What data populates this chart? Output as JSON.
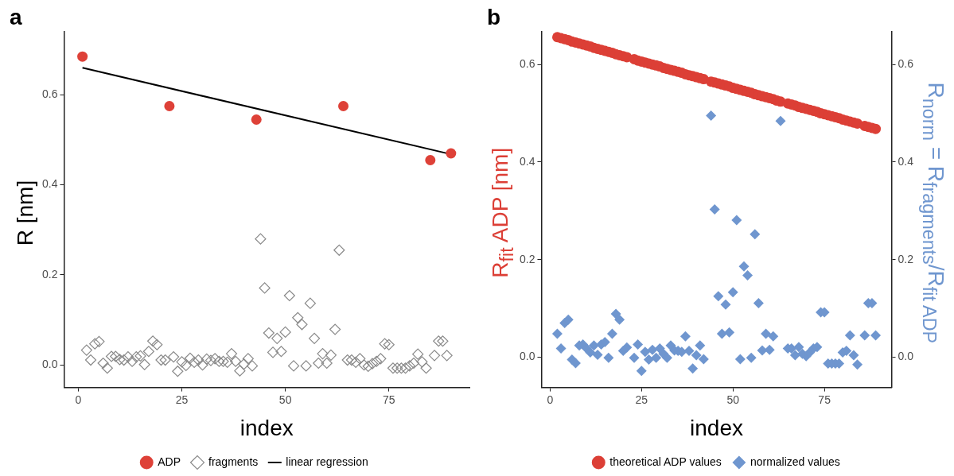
{
  "chart_data": [
    {
      "type": "scatter",
      "title": "a",
      "xlabel": "index",
      "ylabel": "R [nm]",
      "xlim": [
        -3.45,
        94.45
      ],
      "ylim": [
        -0.05,
        0.74
      ],
      "xticks": [
        0,
        25,
        50,
        75
      ],
      "yticks": [
        {
          "value": 0,
          "label": "0.0"
        },
        {
          "value": 0.2,
          "label": "0.2"
        },
        {
          "value": 0.4,
          "label": "0.4"
        },
        {
          "value": 0.6,
          "label": "0.6"
        }
      ],
      "grid": false,
      "legend": "bottom",
      "series": [
        {
          "name": "ADP",
          "color": "#de4138",
          "marker": "circle",
          "x": [
            1,
            22,
            43,
            64,
            85,
            90
          ],
          "values": [
            0.685,
            0.575,
            0.545,
            0.575,
            0.455,
            0.47
          ]
        },
        {
          "name": "fragments",
          "color": "#8a8a8a",
          "marker": "diamond",
          "x": [
            2,
            3,
            4,
            5,
            6,
            7,
            8,
            9,
            10,
            11,
            12,
            13,
            14,
            15,
            16,
            17,
            18,
            19,
            20,
            21,
            23,
            24,
            25,
            26,
            27,
            28,
            29,
            30,
            31,
            32,
            33,
            34,
            35,
            36,
            37,
            38,
            39,
            40,
            41,
            42,
            44,
            45,
            46,
            47,
            48,
            49,
            50,
            51,
            52,
            53,
            54,
            55,
            56,
            57,
            58,
            59,
            60,
            61,
            62,
            63,
            65,
            66,
            67,
            68,
            69,
            70,
            71,
            72,
            73,
            74,
            75,
            76,
            77,
            78,
            79,
            80,
            81,
            82,
            83,
            84,
            86,
            87,
            88,
            89
          ],
          "values": [
            0.033,
            0.011,
            0.047,
            0.052,
            0.004,
            -0.007,
            0.019,
            0.019,
            0.012,
            0.011,
            0.018,
            0.008,
            0.018,
            0.02,
            0.001,
            0.03,
            0.053,
            0.045,
            0.011,
            0.011,
            0.018,
            -0.014,
            0.007,
            -0.001,
            0.015,
            0.006,
            0.011,
            0.0,
            0.013,
            0.01,
            0.014,
            0.008,
            0.008,
            0.006,
            0.025,
            0.008,
            -0.013,
            0.002,
            0.014,
            -0.002,
            0.28,
            0.171,
            0.071,
            0.028,
            0.059,
            0.03,
            0.073,
            0.154,
            -0.002,
            0.105,
            0.09,
            -0.002,
            0.137,
            0.059,
            0.004,
            0.025,
            0.004,
            0.022,
            0.079,
            0.255,
            0.011,
            0.011,
            0.006,
            0.014,
            0.0,
            -0.003,
            0.003,
            0.008,
            0.014,
            0.047,
            0.045,
            -0.007,
            -0.007,
            -0.007,
            -0.007,
            -0.002,
            0.004,
            0.024,
            0.007,
            -0.007,
            0.021,
            0.053,
            0.053,
            0.021
          ]
        },
        {
          "name": "linear regression",
          "type": "line",
          "color": "#000000",
          "marker": "none",
          "x": [
            1,
            90
          ],
          "values": [
            0.66,
            0.468
          ]
        }
      ]
    },
    {
      "type": "scatter",
      "title": "b",
      "xlabel": "index",
      "ylabel": "R$_{fit}$ ADP [nm]",
      "y2label": "R$_{norm}$ = R$_{fragments}$/R$_{fit ADP}$",
      "xlim": [
        -2.35,
        93.35
      ],
      "ylim": [
        -0.062,
        0.667
      ],
      "y2lim": [
        -0.062,
        0.667
      ],
      "xticks": [
        0,
        25,
        50,
        75
      ],
      "yticks": [
        {
          "value": 0,
          "label": "0.0"
        },
        {
          "value": 0.2,
          "label": "0.2"
        },
        {
          "value": 0.4,
          "label": "0.4"
        },
        {
          "value": 0.6,
          "label": "0.6"
        }
      ],
      "y2ticks": [
        {
          "value": 0,
          "label": "0.0"
        },
        {
          "value": 0.2,
          "label": "0.2"
        },
        {
          "value": 0.4,
          "label": "0.4"
        },
        {
          "value": 0.6,
          "label": "0.6"
        }
      ],
      "grid": false,
      "legend": "bottom",
      "series": [
        {
          "name": "theoretical ADP values",
          "color": "#dc3f36",
          "marker": "circle",
          "x": [
            2,
            3,
            4,
            5,
            6,
            7,
            8,
            9,
            10,
            11,
            12,
            13,
            14,
            15,
            16,
            17,
            18,
            19,
            20,
            21,
            23,
            24,
            25,
            26,
            27,
            28,
            29,
            30,
            31,
            32,
            33,
            34,
            35,
            36,
            37,
            38,
            39,
            40,
            41,
            42,
            44,
            45,
            46,
            47,
            48,
            49,
            50,
            51,
            52,
            53,
            54,
            55,
            56,
            57,
            58,
            59,
            60,
            61,
            62,
            63,
            65,
            66,
            67,
            68,
            69,
            70,
            71,
            72,
            73,
            74,
            75,
            76,
            77,
            78,
            79,
            80,
            81,
            82,
            83,
            84,
            86,
            87,
            88,
            89
          ],
          "values": [
            0.656,
            0.654,
            0.652,
            0.65,
            0.647,
            0.645,
            0.643,
            0.641,
            0.639,
            0.637,
            0.634,
            0.632,
            0.63,
            0.628,
            0.626,
            0.624,
            0.621,
            0.619,
            0.617,
            0.615,
            0.611,
            0.608,
            0.606,
            0.604,
            0.602,
            0.6,
            0.598,
            0.596,
            0.593,
            0.591,
            0.589,
            0.587,
            0.585,
            0.583,
            0.58,
            0.578,
            0.576,
            0.574,
            0.572,
            0.57,
            0.565,
            0.563,
            0.561,
            0.559,
            0.557,
            0.555,
            0.552,
            0.55,
            0.548,
            0.546,
            0.544,
            0.542,
            0.539,
            0.537,
            0.535,
            0.533,
            0.531,
            0.529,
            0.526,
            0.524,
            0.52,
            0.518,
            0.516,
            0.513,
            0.511,
            0.509,
            0.507,
            0.505,
            0.503,
            0.5,
            0.498,
            0.496,
            0.494,
            0.492,
            0.49,
            0.487,
            0.485,
            0.483,
            0.481,
            0.479,
            0.474,
            0.472,
            0.47,
            0.468
          ]
        },
        {
          "name": "normalized values",
          "color": "#6f96cf",
          "marker": "diamond",
          "axis": "y2",
          "x": [
            2,
            3,
            4,
            5,
            6,
            7,
            8,
            9,
            10,
            11,
            12,
            13,
            14,
            15,
            16,
            17,
            18,
            19,
            20,
            21,
            23,
            24,
            25,
            26,
            27,
            28,
            29,
            30,
            31,
            32,
            33,
            34,
            35,
            36,
            37,
            38,
            39,
            40,
            41,
            42,
            44,
            45,
            46,
            47,
            48,
            49,
            50,
            51,
            52,
            53,
            54,
            55,
            56,
            57,
            58,
            59,
            60,
            61,
            63,
            65,
            66,
            67,
            68,
            69,
            70,
            71,
            72,
            73,
            74,
            75,
            76,
            77,
            78,
            79,
            80,
            81,
            82,
            83,
            84,
            86,
            87,
            88,
            89
          ],
          "values": [
            0.048,
            0.018,
            0.07,
            0.077,
            -0.005,
            -0.012,
            0.024,
            0.026,
            0.018,
            0.01,
            0.024,
            0.005,
            0.026,
            0.031,
            -0.001,
            0.048,
            0.089,
            0.077,
            0.013,
            0.02,
            -0.001,
            0.026,
            -0.028,
            0.011,
            -0.005,
            0.015,
            -0.001,
            0.018,
            0.007,
            -0.001,
            0.024,
            0.014,
            0.013,
            0.011,
            0.043,
            0.013,
            -0.023,
            0.004,
            0.024,
            -0.004,
            0.495,
            0.303,
            0.125,
            0.048,
            0.108,
            0.051,
            0.133,
            0.281,
            -0.004,
            0.186,
            0.168,
            -0.001,
            0.252,
            0.111,
            0.014,
            0.048,
            0.015,
            0.043,
            0.484,
            0.018,
            0.018,
            0.004,
            0.021,
            0.007,
            0.002,
            0.01,
            0.018,
            0.021,
            0.092,
            0.092,
            -0.013,
            -0.013,
            -0.013,
            -0.013,
            0.01,
            0.013,
            0.045,
            0.004,
            -0.015,
            0.045,
            0.111,
            0.111,
            0.045
          ]
        }
      ]
    }
  ]
}
